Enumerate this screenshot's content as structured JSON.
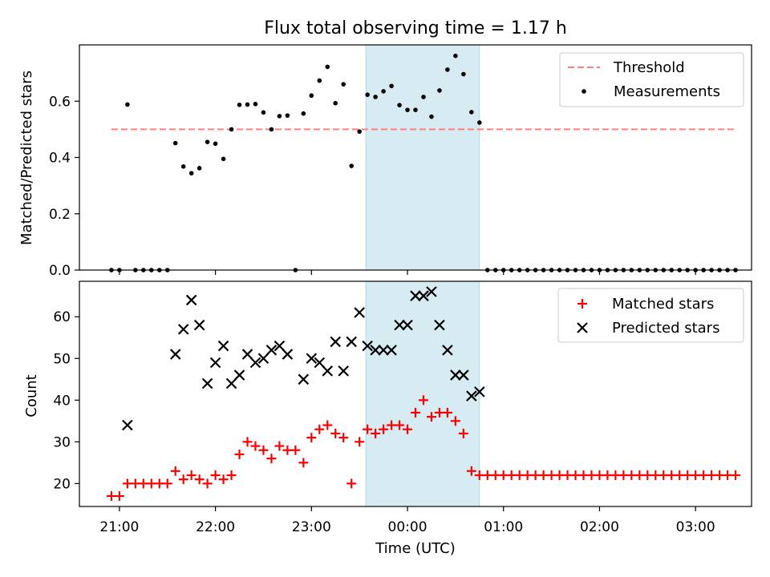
{
  "figure": {
    "title": "Flux total observing time = 1.17 h",
    "xlabel": "Time (UTC)",
    "colors": {
      "shade": "#add8e6",
      "threshold": "#ff7f7f",
      "measurement": "#000000",
      "matched": "#ff0000",
      "predicted": "#000000"
    }
  },
  "chart_data": [
    {
      "type": "scatter",
      "ylabel": "Matched/Predicted stars",
      "xlim": [
        "20:35",
        "03:35"
      ],
      "ylim": [
        0,
        0.8
      ],
      "yticks": [
        0.0,
        0.2,
        0.4,
        0.6
      ],
      "x_ticks_unlabeled": [
        "21:00",
        "22:00",
        "23:00",
        "00:00",
        "01:00",
        "02:00",
        "03:00"
      ],
      "shaded_span": [
        "23:34",
        "00:45"
      ],
      "legend": {
        "position": "upper right",
        "entries": [
          "Threshold",
          "Measurements"
        ]
      },
      "threshold": {
        "name": "Threshold",
        "y": 0.5,
        "x": [
          "20:55",
          "03:25"
        ],
        "style": "dashed"
      },
      "series": [
        {
          "name": "Measurements",
          "marker": "dot",
          "x": [
            "20:55",
            "21:00",
            "21:05",
            "21:10",
            "21:15",
            "21:20",
            "21:25",
            "21:30",
            "21:35",
            "21:40",
            "21:45",
            "21:50",
            "21:55",
            "22:00",
            "22:05",
            "22:10",
            "22:15",
            "22:20",
            "22:25",
            "22:30",
            "22:35",
            "22:40",
            "22:45",
            "22:50",
            "22:55",
            "23:00",
            "23:05",
            "23:10",
            "23:15",
            "23:20",
            "23:25",
            "23:30",
            "23:35",
            "23:40",
            "23:45",
            "23:50",
            "23:55",
            "00:00",
            "00:05",
            "00:10",
            "00:15",
            "00:20",
            "00:25",
            "00:30",
            "00:35",
            "00:40",
            "00:45",
            "00:50",
            "00:55",
            "01:00",
            "01:05",
            "01:10",
            "01:15",
            "01:20",
            "01:25",
            "01:30",
            "01:35",
            "01:40",
            "01:45",
            "01:50",
            "01:55",
            "02:00",
            "02:05",
            "02:10",
            "02:15",
            "02:20",
            "02:25",
            "02:30",
            "02:35",
            "02:40",
            "02:45",
            "02:50",
            "02:55",
            "03:00",
            "03:05",
            "03:10",
            "03:15",
            "03:20",
            "03:25"
          ],
          "y": [
            0,
            0,
            0.588,
            0,
            0,
            0,
            0,
            0,
            0.451,
            0.368,
            0.344,
            0.362,
            0.455,
            0.449,
            0.395,
            0.5,
            0.587,
            0.588,
            0.59,
            0.56,
            0.5,
            0.547,
            0.549,
            0,
            0.556,
            0.62,
            0.673,
            0.722,
            0.593,
            0.66,
            0.37,
            0.492,
            0.623,
            0.615,
            0.635,
            0.654,
            0.586,
            0.569,
            0.569,
            0.615,
            0.545,
            0.638,
            0.712,
            0.761,
            0.696,
            0.561,
            0.524,
            0,
            0,
            0,
            0,
            0,
            0,
            0,
            0,
            0,
            0,
            0,
            0,
            0,
            0,
            0,
            0,
            0,
            0,
            0,
            0,
            0,
            0,
            0,
            0,
            0,
            0,
            0,
            0,
            0,
            0,
            0,
            0
          ]
        }
      ]
    },
    {
      "type": "scatter",
      "ylabel": "Count",
      "xlabel": "Time (UTC)",
      "xlim": [
        "20:35",
        "03:35"
      ],
      "ylim": [
        14.5,
        68.5
      ],
      "yticks": [
        20,
        30,
        40,
        50,
        60
      ],
      "xticks": [
        "21:00",
        "22:00",
        "23:00",
        "00:00",
        "01:00",
        "02:00",
        "03:00"
      ],
      "shaded_span": [
        "23:34",
        "00:45"
      ],
      "legend": {
        "position": "upper right",
        "entries": [
          "Matched stars",
          "Predicted stars"
        ]
      },
      "series": [
        {
          "name": "Matched stars",
          "marker": "plus",
          "x": [
            "20:55",
            "21:00",
            "21:05",
            "21:10",
            "21:15",
            "21:20",
            "21:25",
            "21:30",
            "21:35",
            "21:40",
            "21:45",
            "21:50",
            "21:55",
            "22:00",
            "22:05",
            "22:10",
            "22:15",
            "22:20",
            "22:25",
            "22:30",
            "22:35",
            "22:40",
            "22:45",
            "22:50",
            "22:55",
            "23:00",
            "23:05",
            "23:10",
            "23:15",
            "23:20",
            "23:25",
            "23:30",
            "23:35",
            "23:40",
            "23:45",
            "23:50",
            "23:55",
            "00:00",
            "00:05",
            "00:10",
            "00:15",
            "00:20",
            "00:25",
            "00:30",
            "00:35",
            "00:40",
            "00:45",
            "00:50",
            "00:55",
            "01:00",
            "01:05",
            "01:10",
            "01:15",
            "01:20",
            "01:25",
            "01:30",
            "01:35",
            "01:40",
            "01:45",
            "01:50",
            "01:55",
            "02:00",
            "02:05",
            "02:10",
            "02:15",
            "02:20",
            "02:25",
            "02:30",
            "02:35",
            "02:40",
            "02:45",
            "02:50",
            "02:55",
            "03:00",
            "03:05",
            "03:10",
            "03:15",
            "03:20",
            "03:25"
          ],
          "y": [
            17,
            17,
            20,
            20,
            20,
            20,
            20,
            20,
            23,
            21,
            22,
            21,
            20,
            22,
            21,
            22,
            27,
            30,
            29,
            28,
            26,
            29,
            28,
            28,
            25,
            31,
            33,
            34,
            32,
            31,
            20,
            30,
            33,
            32,
            33,
            34,
            34,
            33,
            37,
            40,
            36,
            37,
            37,
            35,
            32,
            23,
            22,
            22,
            22,
            22,
            22,
            22,
            22,
            22,
            22,
            22,
            22,
            22,
            22,
            22,
            22,
            22,
            22,
            22,
            22,
            22,
            22,
            22,
            22,
            22,
            22,
            22,
            22,
            22,
            22,
            22,
            22,
            22,
            22
          ]
        },
        {
          "name": "Predicted stars",
          "marker": "x",
          "x": [
            "21:05",
            "21:35",
            "21:40",
            "21:45",
            "21:50",
            "21:55",
            "22:00",
            "22:05",
            "22:10",
            "22:15",
            "22:20",
            "22:25",
            "22:30",
            "22:35",
            "22:40",
            "22:45",
            "22:55",
            "23:00",
            "23:05",
            "23:10",
            "23:15",
            "23:20",
            "23:25",
            "23:30",
            "23:35",
            "23:40",
            "23:45",
            "23:50",
            "23:55",
            "00:00",
            "00:05",
            "00:10",
            "00:15",
            "00:20",
            "00:25",
            "00:30",
            "00:35",
            "00:40",
            "00:45"
          ],
          "y": [
            34,
            51,
            57,
            64,
            58,
            44,
            49,
            53,
            44,
            46,
            51,
            49,
            50,
            52,
            53,
            51,
            45,
            50,
            49,
            47,
            54,
            47,
            54,
            61,
            53,
            52,
            52,
            52,
            58,
            58,
            65,
            65,
            66,
            58,
            52,
            46,
            46,
            41,
            42
          ]
        }
      ]
    }
  ]
}
